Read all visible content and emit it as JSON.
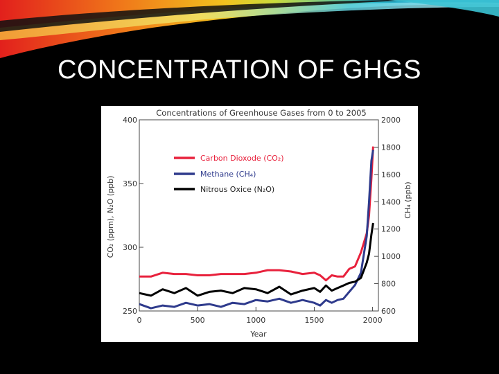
{
  "slide": {
    "title": "CONCENTRATION OF GHGS"
  },
  "colors": {
    "co2": "#e8213c",
    "ch4": "#2e3a8c",
    "n2o": "#000000"
  },
  "chart_data": {
    "type": "line",
    "title": "Concentrations of Greenhouse Gases from 0 to 2005",
    "xlabel": "Year",
    "ylabel_left": "CO₂ (ppm), N₂O (ppb)",
    "ylabel_right": "CH₄ (ppb)",
    "xlim": [
      0,
      2050
    ],
    "ylim_left": [
      250,
      400
    ],
    "ylim_right": [
      600,
      2000
    ],
    "x_ticks": [
      "0",
      "500",
      "1000",
      "1500",
      "2000"
    ],
    "y_ticks_left": [
      "400",
      "350",
      "300",
      "250"
    ],
    "y_ticks_right": [
      "2000",
      "1800",
      "1600",
      "1400",
      "1200",
      "1000",
      "800",
      "600"
    ],
    "series": [
      {
        "name": "Carbon Dioxode (CO₂)",
        "axis": "left",
        "color": "#e8213c",
        "x": [
          0,
          100,
          200,
          300,
          400,
          500,
          600,
          700,
          800,
          900,
          1000,
          1100,
          1200,
          1300,
          1400,
          1500,
          1550,
          1600,
          1650,
          1700,
          1750,
          1800,
          1850,
          1900,
          1950,
          1970,
          1990,
          2005
        ],
        "y": [
          277,
          277,
          280,
          279,
          279,
          278,
          278,
          279,
          279,
          279,
          280,
          282,
          282,
          281,
          279,
          280,
          278,
          274,
          278,
          277,
          277,
          283,
          285,
          296,
          311,
          325,
          354,
          379
        ]
      },
      {
        "name": "Methane (CH₄)",
        "axis": "right",
        "color": "#2e3a8c",
        "x": [
          0,
          100,
          200,
          300,
          400,
          500,
          600,
          700,
          800,
          900,
          1000,
          1100,
          1200,
          1300,
          1400,
          1500,
          1550,
          1600,
          1650,
          1700,
          1750,
          1800,
          1850,
          1900,
          1950,
          1970,
          1990,
          2005
        ],
        "y": [
          650,
          620,
          640,
          630,
          660,
          640,
          650,
          630,
          660,
          650,
          680,
          670,
          690,
          660,
          680,
          660,
          640,
          680,
          660,
          680,
          690,
          740,
          790,
          880,
          1150,
          1400,
          1700,
          1780
        ]
      },
      {
        "name": "Nitrous Oxice (N₂O)",
        "axis": "left",
        "color": "#000000",
        "x": [
          0,
          100,
          200,
          300,
          400,
          500,
          600,
          700,
          800,
          900,
          1000,
          1100,
          1200,
          1300,
          1400,
          1500,
          1550,
          1600,
          1650,
          1700,
          1750,
          1800,
          1850,
          1900,
          1950,
          1970,
          1990,
          2005
        ],
        "y": [
          264,
          262,
          267,
          264,
          268,
          262,
          265,
          266,
          264,
          268,
          267,
          264,
          269,
          263,
          266,
          268,
          265,
          270,
          266,
          268,
          270,
          272,
          273,
          276,
          288,
          295,
          310,
          319
        ]
      }
    ]
  }
}
